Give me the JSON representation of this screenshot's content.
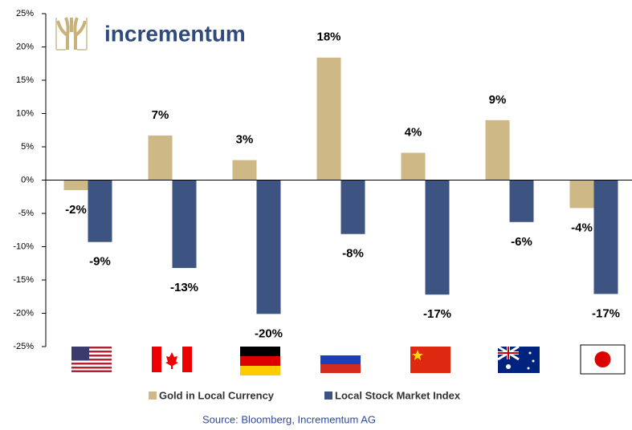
{
  "chart_data": {
    "type": "bar",
    "logo": "incrementum",
    "categories": [
      null,
      null,
      null,
      null,
      null,
      null,
      null
    ],
    "series": [
      {
        "name": "Gold in Local Currency",
        "color": "#cdb886",
        "values": [
          -1.5,
          6.7,
          3.0,
          18.4,
          4.1,
          9.0,
          -4.2
        ],
        "value_labels": [
          "-2%",
          "7%",
          "3%",
          "18%",
          "4%",
          "9%",
          "-4%"
        ]
      },
      {
        "name": "Local Stock Market Index",
        "color": "#3d5382",
        "values": [
          -9.3,
          -13.2,
          -20.1,
          -8.1,
          -17.2,
          -6.3,
          -17.1
        ],
        "value_labels": [
          "-9%",
          "-13%",
          "-20%",
          "-8%",
          "-17%",
          "-6%",
          "-17%"
        ]
      }
    ],
    "ylim": [
      -25,
      25
    ],
    "yticks": [
      {
        "value": -25,
        "label": "-25%"
      },
      {
        "value": -20,
        "label": "-20%"
      },
      {
        "value": -15,
        "label": "-15%"
      },
      {
        "value": -10,
        "label": "-10%"
      },
      {
        "value": -5,
        "label": "-5%"
      },
      {
        "value": 0,
        "label": "0%"
      },
      {
        "value": 5,
        "label": "5%"
      },
      {
        "value": 10,
        "label": "10%"
      },
      {
        "value": 15,
        "label": "15%"
      },
      {
        "value": 20,
        "label": "20%"
      },
      {
        "value": 25,
        "label": "25%"
      }
    ],
    "source": "Source: Bloomberg, Incrementum AG"
  }
}
